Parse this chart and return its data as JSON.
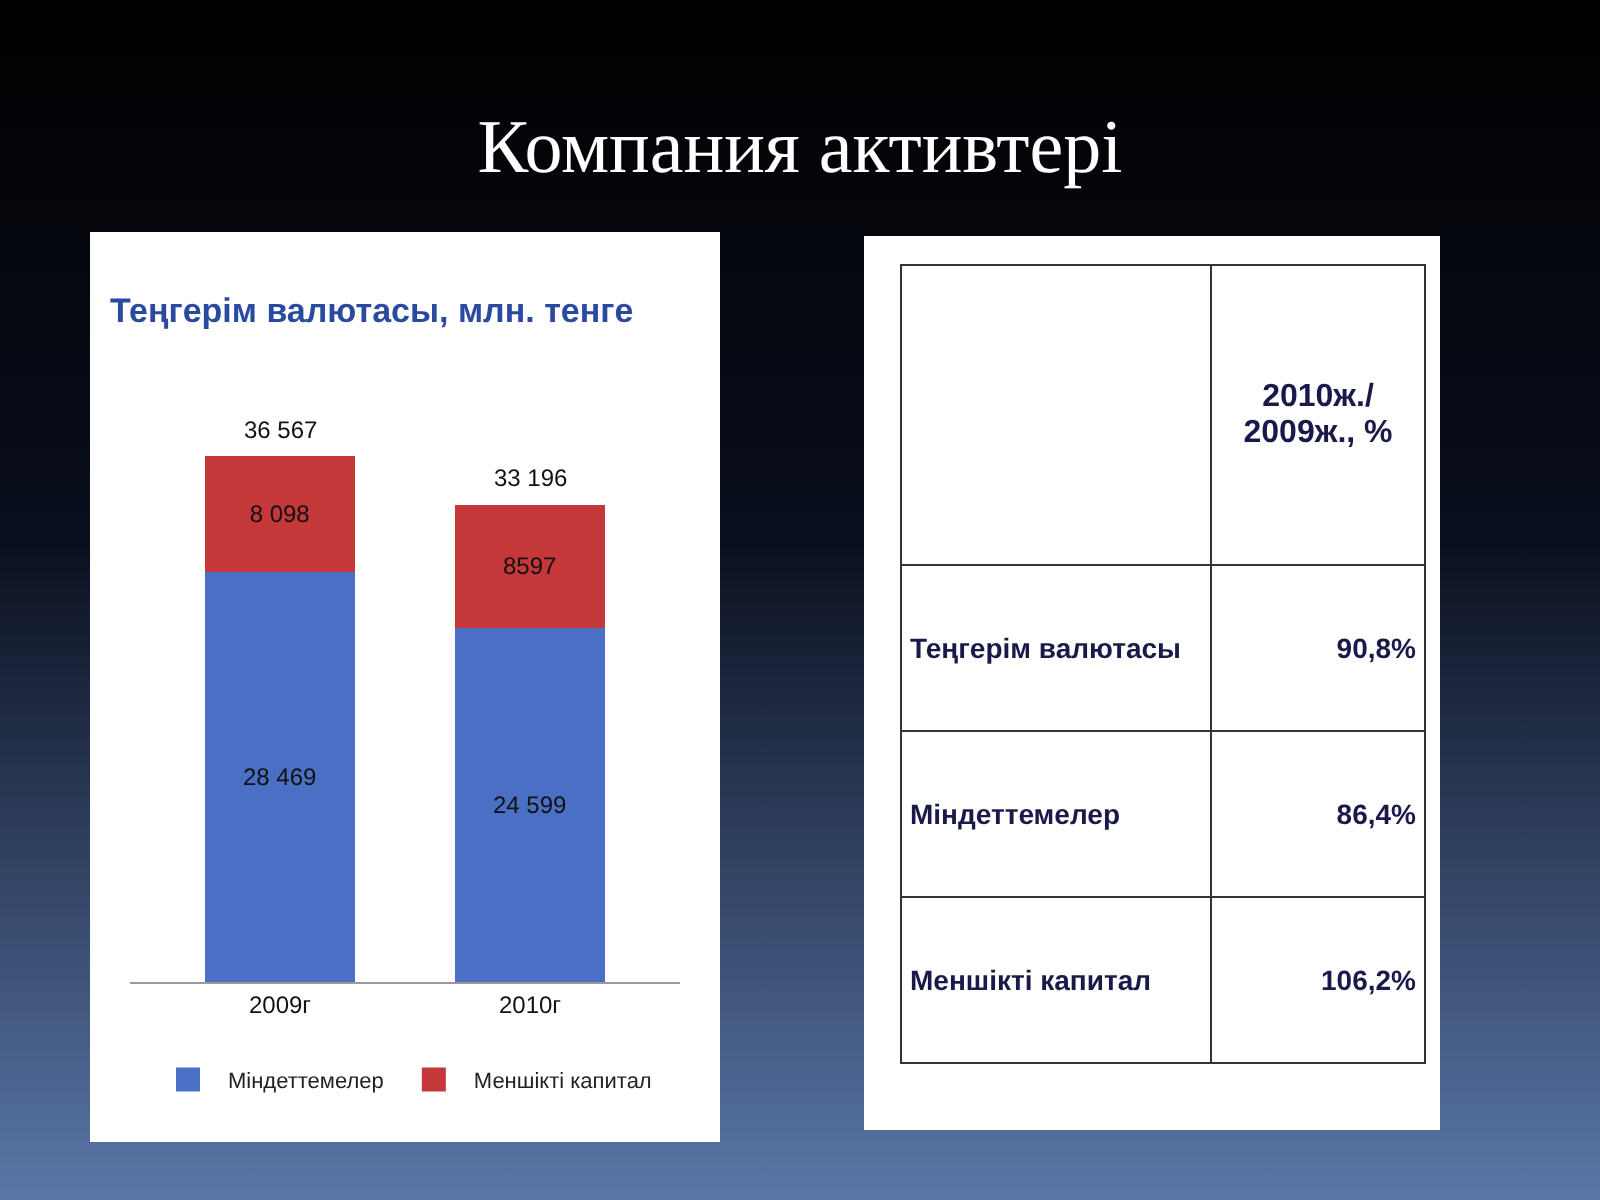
{
  "chart_data": [
    {
      "type": "bar",
      "title": "Компания активтері",
      "subtitle": "Теңгерім валютасы, млн. тенге",
      "categories": [
        "2009г",
        "2010г"
      ],
      "stacked": true,
      "legend": "bottom",
      "data_labels": true,
      "totals": [
        "36 567",
        "33 196"
      ],
      "series": [
        {
          "name": "Міндеттемелер",
          "color": "#4a6fc4",
          "values": [
            28469,
            24599
          ],
          "value_labels": [
            "28 469",
            "24 599"
          ]
        },
        {
          "name": "Меншікті капитал",
          "color": "#c4383a",
          "values": [
            8098,
            8597
          ],
          "value_labels": [
            "8 098",
            "8597"
          ]
        }
      ]
    },
    {
      "type": "other",
      "ylabel": "2010ж./ 2009ж., %",
      "categories": [
        "Теңгерім валютасы",
        "Міндеттемелер",
        "Меншікті капитал"
      ],
      "value_labels": [
        "90,8%",
        "86,4%",
        "106,2%"
      ]
    }
  ]
}
